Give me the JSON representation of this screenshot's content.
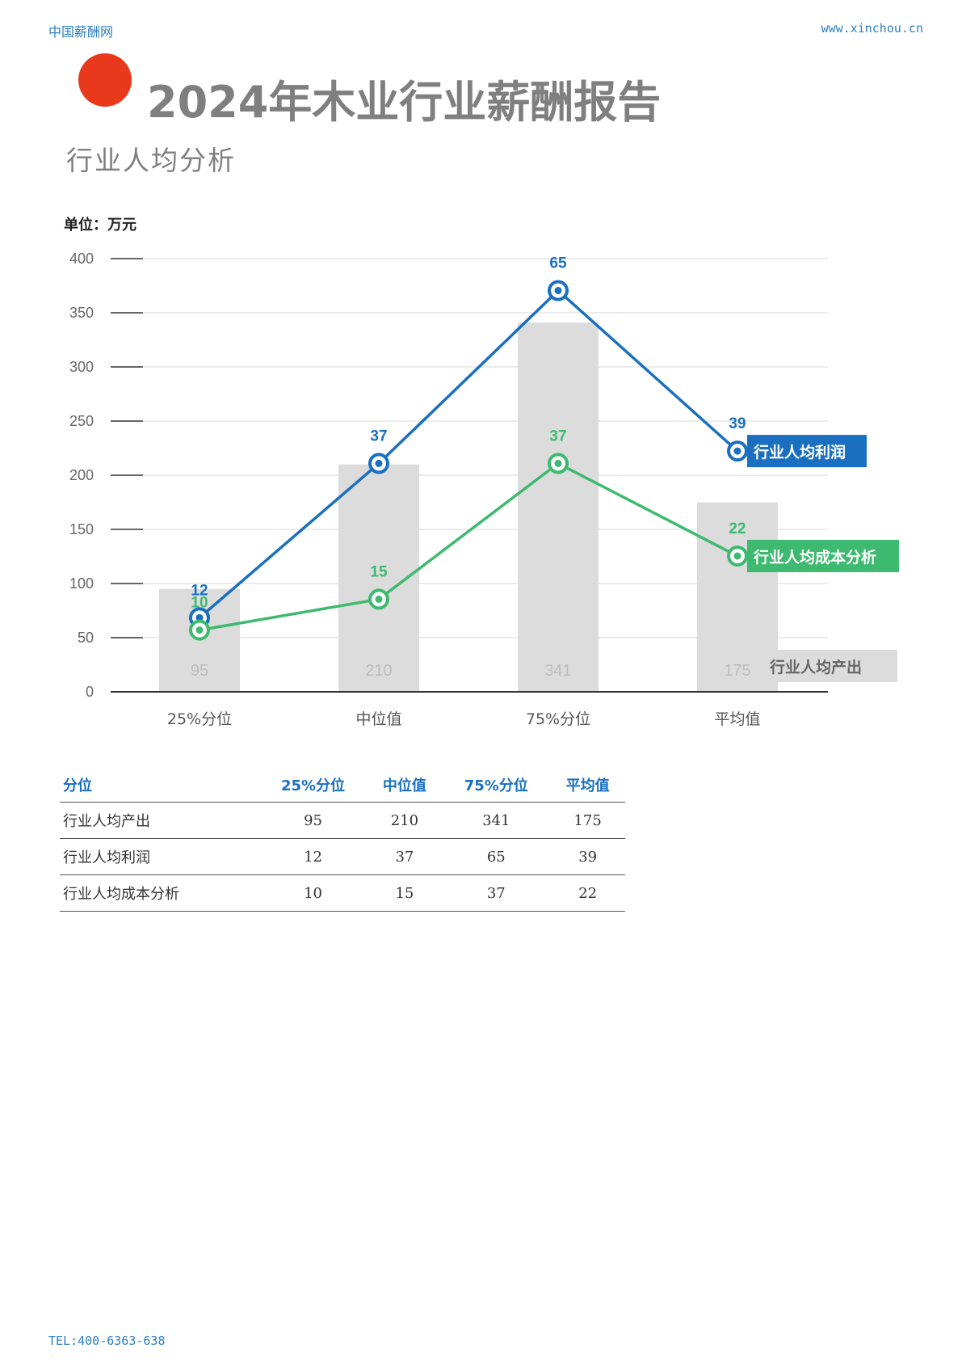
{
  "header": {
    "site_name": "中国薪酬网",
    "site_url": "www.xinchou.cn",
    "title": "2024年木业行业薪酬报告",
    "subtitle": "行业人均分析"
  },
  "chart_data": {
    "type": "bar",
    "unit_label": "单位：万元",
    "categories": [
      "25%分位",
      "中位值",
      "75%分位",
      "平均值"
    ],
    "ylim": [
      0,
      400
    ],
    "yticks": [
      0,
      50,
      100,
      150,
      200,
      250,
      300,
      350,
      400
    ],
    "grid": true,
    "bar_series": {
      "name": "行业人均产出",
      "values": [
        95,
        210,
        341,
        175
      ],
      "color": "#dcdcdc"
    },
    "line_series": [
      {
        "name": "行业人均利润",
        "values": [
          12,
          37,
          65,
          39
        ],
        "color": "#1a6fc0"
      },
      {
        "name": "行业人均成本分析",
        "values": [
          10,
          15,
          37,
          22
        ],
        "color": "#3dba6f"
      }
    ]
  },
  "table": {
    "headers": [
      "分位",
      "25%分位",
      "中位值",
      "75%分位",
      "平均值"
    ],
    "rows": [
      [
        "行业人均产出",
        "95",
        "210",
        "341",
        "175"
      ],
      [
        "行业人均利润",
        "12",
        "37",
        "65",
        "39"
      ],
      [
        "行业人均成本分析",
        "10",
        "15",
        "37",
        "22"
      ]
    ]
  },
  "footer": {
    "tel": "TEL:400-6363-638"
  }
}
